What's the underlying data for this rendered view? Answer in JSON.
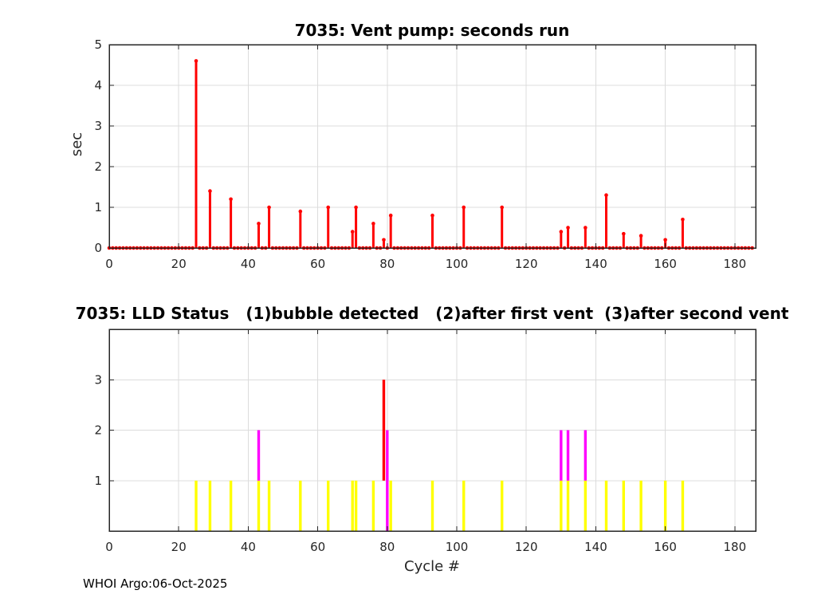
{
  "figure": {
    "footer": "WHOI Argo:06-Oct-2025",
    "background": "#ffffff",
    "colors": {
      "stem": "#ff0000",
      "status1": "#ffff00",
      "status2": "#ff00ff",
      "status3": "#ff0000",
      "grid": "#dcdcdc",
      "axis": "#262626",
      "tick_text": "#262626",
      "title_text": "#000000"
    }
  },
  "chart_data": [
    {
      "type": "stem",
      "title": "7035: Vent pump: seconds run",
      "ylabel": "sec",
      "xlabel": "",
      "xlim": [
        0,
        186
      ],
      "ylim": [
        0,
        5
      ],
      "xticks": [
        0,
        20,
        40,
        60,
        80,
        100,
        120,
        140,
        160,
        180
      ],
      "yticks": [
        0,
        1,
        2,
        3,
        4,
        5
      ],
      "grid": true,
      "max_cycle": 185,
      "marker_at_zero_for_all_cycles": true,
      "stems": [
        [
          25,
          4.6
        ],
        [
          29,
          1.4
        ],
        [
          35,
          1.2
        ],
        [
          43,
          0.6
        ],
        [
          46,
          1.0
        ],
        [
          55,
          0.9
        ],
        [
          63,
          1.0
        ],
        [
          70,
          0.4
        ],
        [
          71,
          1.0
        ],
        [
          76,
          0.6
        ],
        [
          79,
          0.2
        ],
        [
          81,
          0.8
        ],
        [
          93,
          0.8
        ],
        [
          102,
          1.0
        ],
        [
          113,
          1.0
        ],
        [
          130,
          0.4
        ],
        [
          132,
          0.5
        ],
        [
          137,
          0.5
        ],
        [
          143,
          1.3
        ],
        [
          148,
          0.35
        ],
        [
          153,
          0.3
        ],
        [
          160,
          0.2
        ],
        [
          165,
          0.7
        ]
      ]
    },
    {
      "type": "bar",
      "title": "7035: LLD Status   (1)bubble detected   (2)after first vent  (3)after second vent",
      "xlabel": "Cycle #",
      "ylabel": "",
      "xlim": [
        0,
        186
      ],
      "ylim": [
        0,
        4
      ],
      "xticks": [
        0,
        20,
        40,
        60,
        80,
        100,
        120,
        140,
        160,
        180
      ],
      "yticks": [
        1,
        2,
        3
      ],
      "grid": true,
      "status_colors": {
        "1": "#ffff00",
        "2": "#ff00ff",
        "3": "#ff0000"
      },
      "bars": [
        {
          "cycle": 25,
          "segments": [
            [
              "1",
              0,
              1
            ]
          ]
        },
        {
          "cycle": 29,
          "segments": [
            [
              "1",
              0,
              1
            ]
          ]
        },
        {
          "cycle": 35,
          "segments": [
            [
              "1",
              0,
              1
            ]
          ]
        },
        {
          "cycle": 43,
          "segments": [
            [
              "1",
              0,
              1
            ],
            [
              "2",
              1,
              2
            ]
          ]
        },
        {
          "cycle": 46,
          "segments": [
            [
              "1",
              0,
              1
            ]
          ]
        },
        {
          "cycle": 55,
          "segments": [
            [
              "1",
              0,
              1
            ]
          ]
        },
        {
          "cycle": 63,
          "segments": [
            [
              "1",
              0,
              1
            ]
          ]
        },
        {
          "cycle": 70,
          "segments": [
            [
              "1",
              0,
              1
            ]
          ]
        },
        {
          "cycle": 71,
          "segments": [
            [
              "1",
              0,
              1
            ]
          ]
        },
        {
          "cycle": 76,
          "segments": [
            [
              "1",
              0,
              1
            ]
          ]
        },
        {
          "cycle": 79,
          "segments": [
            [
              "3",
              1,
              3
            ]
          ]
        },
        {
          "cycle": 80,
          "segments": [
            [
              "2",
              0,
              2
            ]
          ]
        },
        {
          "cycle": 81,
          "segments": [
            [
              "1",
              0,
              1
            ]
          ]
        },
        {
          "cycle": 93,
          "segments": [
            [
              "1",
              0,
              1
            ]
          ]
        },
        {
          "cycle": 102,
          "segments": [
            [
              "1",
              0,
              1
            ]
          ]
        },
        {
          "cycle": 113,
          "segments": [
            [
              "1",
              0,
              1
            ]
          ]
        },
        {
          "cycle": 130,
          "segments": [
            [
              "1",
              0,
              1
            ],
            [
              "2",
              1,
              2
            ]
          ]
        },
        {
          "cycle": 132,
          "segments": [
            [
              "1",
              0,
              1
            ],
            [
              "2",
              1,
              2
            ]
          ]
        },
        {
          "cycle": 137,
          "segments": [
            [
              "1",
              0,
              1
            ],
            [
              "2",
              1,
              2
            ]
          ]
        },
        {
          "cycle": 143,
          "segments": [
            [
              "1",
              0,
              1
            ]
          ]
        },
        {
          "cycle": 148,
          "segments": [
            [
              "1",
              0,
              1
            ]
          ]
        },
        {
          "cycle": 153,
          "segments": [
            [
              "1",
              0,
              1
            ]
          ]
        },
        {
          "cycle": 160,
          "segments": [
            [
              "1",
              0,
              1
            ]
          ]
        },
        {
          "cycle": 165,
          "segments": [
            [
              "1",
              0,
              1
            ]
          ]
        }
      ]
    }
  ]
}
